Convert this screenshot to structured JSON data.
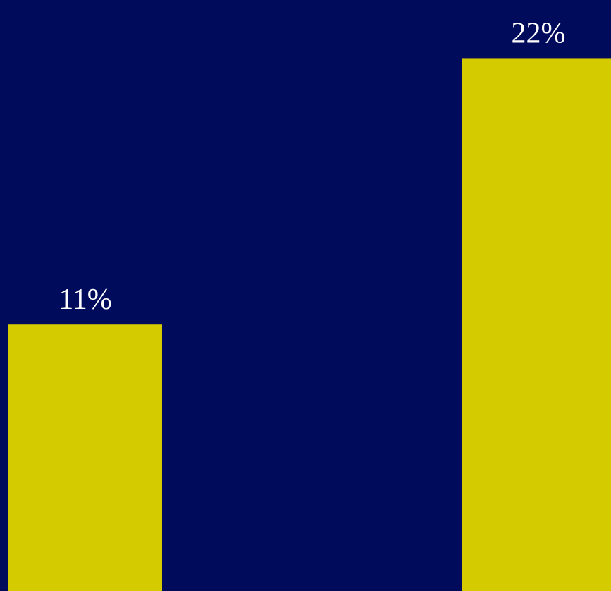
{
  "colors": {
    "background": "#000b5c",
    "bar": "#d4cb00",
    "label": "#ffffff"
  },
  "chart_data": {
    "type": "bar",
    "categories": [
      "",
      ""
    ],
    "values": [
      11,
      22
    ],
    "data_labels": [
      "11%",
      "22%"
    ],
    "title": "",
    "xlabel": "",
    "ylabel": "",
    "ylim": [
      0,
      24.4
    ],
    "grid": false,
    "legend": "none"
  }
}
